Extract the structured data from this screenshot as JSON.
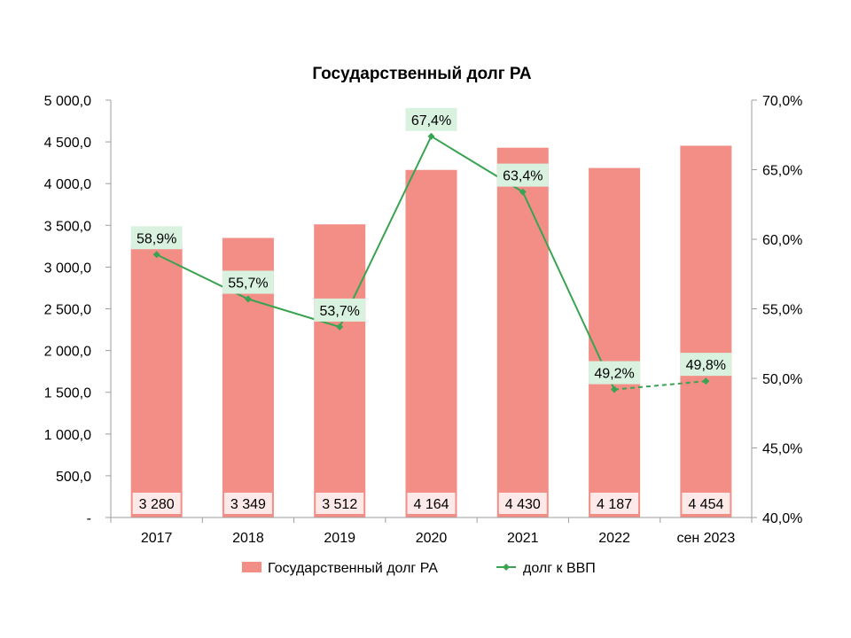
{
  "chart_data": {
    "type": "bar",
    "title": "Государственный  долг РА",
    "categories": [
      "2017",
      "2018",
      "2019",
      "2020",
      "2021",
      "2022",
      "сен 2023"
    ],
    "series": [
      {
        "name": "Государственный долг РА",
        "type": "bar",
        "axis": "left",
        "values": [
          3280,
          3349,
          3512,
          4164,
          4430,
          4187,
          4454
        ],
        "labels": [
          "3 280",
          "3 349",
          "3 512",
          "4 164",
          "4 430",
          "4 187",
          "4 454"
        ],
        "color": "#f28e86"
      },
      {
        "name": "долг к ВВП",
        "type": "line",
        "axis": "right",
        "values": [
          58.9,
          55.7,
          53.7,
          67.4,
          63.4,
          49.2,
          49.8
        ],
        "labels": [
          "58,9%",
          "55,7%",
          "53,7%",
          "67,4%",
          "63,4%",
          "49,2%",
          "49,8%"
        ],
        "color": "#3aa352",
        "dashed_last_segment": true
      }
    ],
    "y_left": {
      "ylim": [
        0,
        5000
      ],
      "ticks": [
        0,
        500,
        1000,
        1500,
        2000,
        2500,
        3000,
        3500,
        4000,
        4500,
        5000
      ],
      "tick_labels": [
        "-",
        "500,0",
        "1 000,0",
        "1 500,0",
        "2 000,0",
        "2 500,0",
        "3 000,0",
        "3 500,0",
        "4 000,0",
        "4 500,0",
        "5 000,0"
      ]
    },
    "y_right": {
      "ylim": [
        40,
        70
      ],
      "ticks": [
        40,
        45,
        50,
        55,
        60,
        65,
        70
      ],
      "tick_labels": [
        "40,0%",
        "45,0%",
        "50,0%",
        "55,0%",
        "60,0%",
        "65,0%",
        "70,0%"
      ]
    },
    "grid": false,
    "legend_position": "bottom",
    "colors": {
      "bar": "#f28e86",
      "bar_label_bg": "#fde9e7",
      "line": "#3aa352",
      "line_label_bg": "#d9f2df",
      "axis": "#9e9e9e"
    }
  }
}
